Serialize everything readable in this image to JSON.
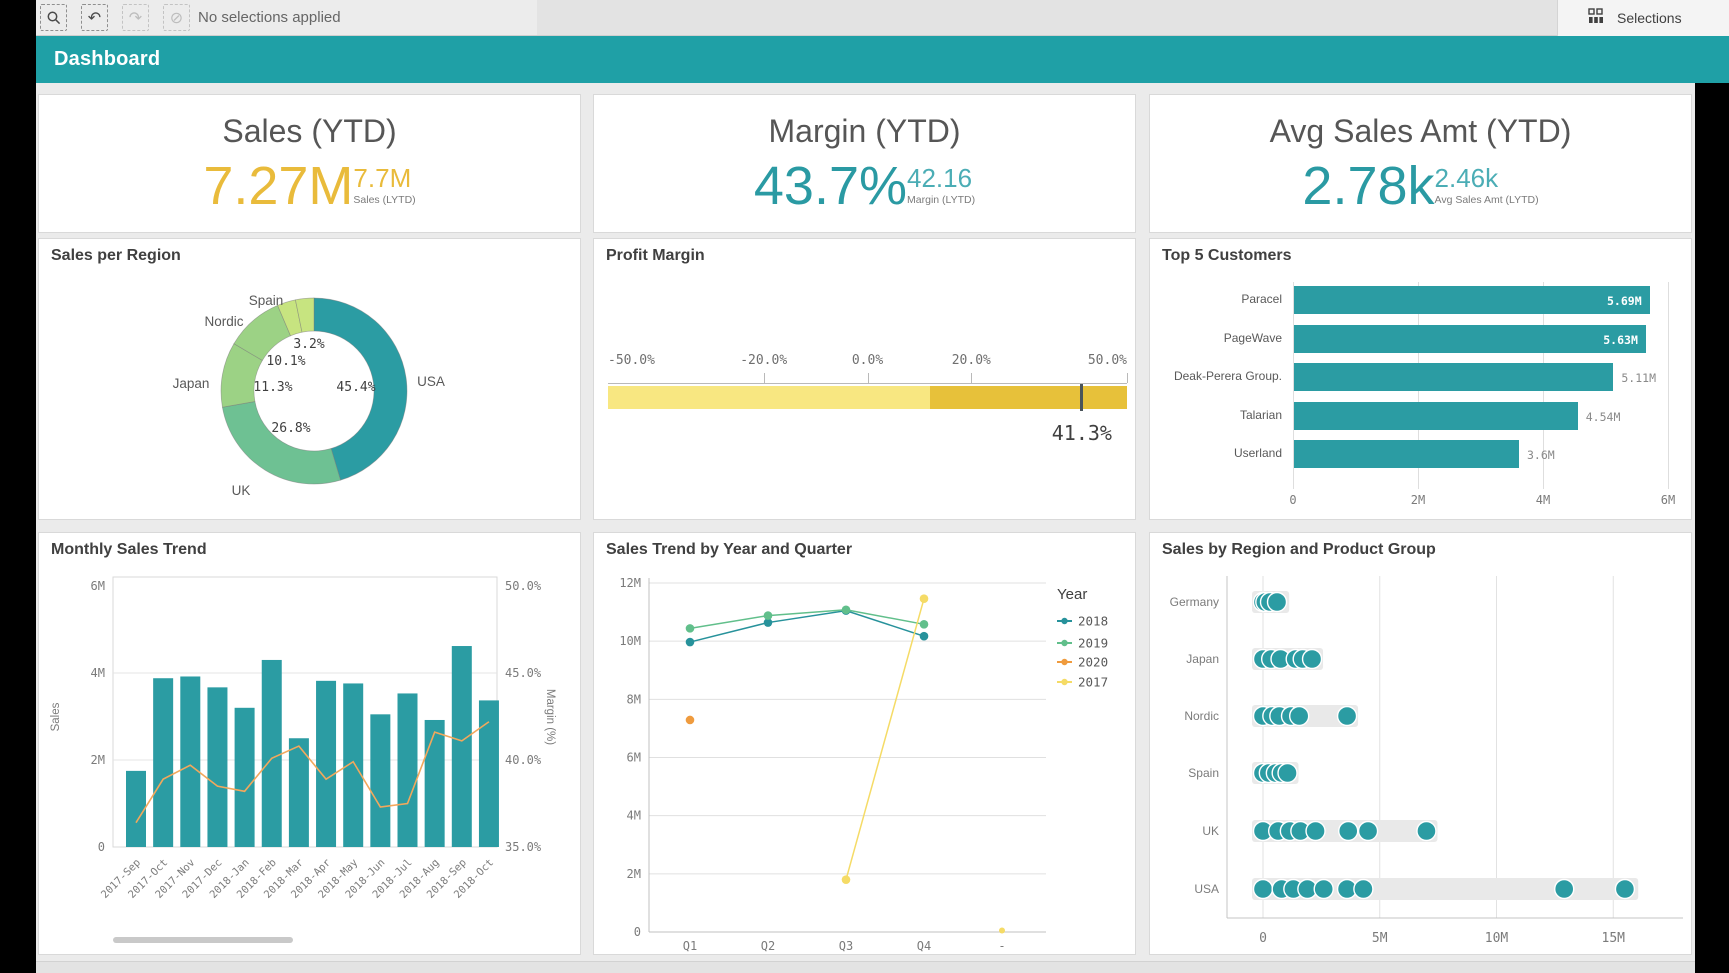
{
  "toolbar": {
    "message": "No selections applied",
    "selections_label": "Selections",
    "tools": [
      {
        "name": "smart-search",
        "enabled": true
      },
      {
        "name": "step-back",
        "enabled": true
      },
      {
        "name": "step-forward",
        "enabled": false
      },
      {
        "name": "clear-all-selections",
        "enabled": false
      }
    ]
  },
  "sheet": {
    "title": "Dashboard"
  },
  "colors": {
    "header_teal": "#1FA0A6",
    "chart_teal": "#2B9CA3",
    "kpi_yellow": "#E9BB3B",
    "kpi_teal": "#2A9AA3",
    "gauge_light": "#F8E781",
    "gauge_dark": "#E7C13A",
    "line_orange": "#F2A85C"
  },
  "kpis": [
    {
      "title": "Sales (YTD)",
      "value": "7.27M",
      "value_color": "#E9BB3B",
      "secondary": "7.7M",
      "secondary_color": "#E9BB3B",
      "secondary_label": "Sales (LYTD)"
    },
    {
      "title": "Margin (YTD)",
      "value": "43.7%",
      "value_color": "#2A9AA3",
      "secondary": "42.16",
      "secondary_color": "#4BADB5",
      "secondary_label": "Margin (LYTD)"
    },
    {
      "title": "Avg Sales Amt (YTD)",
      "value": "2.78k",
      "value_color": "#2A9AA3",
      "secondary": "2.46k",
      "secondary_color": "#4BADB5",
      "secondary_label": "Avg Sales Amt (LYTD)"
    }
  ],
  "chart_data": [
    {
      "id": "sales-per-region",
      "type": "pie",
      "title": "Sales per Region",
      "donut": true,
      "slices": [
        {
          "label": "USA",
          "pct": 45.4,
          "pct_label": "45.4%",
          "color": "#2B9CA3"
        },
        {
          "label": "UK",
          "pct": 26.8,
          "pct_label": "26.8%",
          "color": "#6EC193"
        },
        {
          "label": "Japan",
          "pct": 11.3,
          "pct_label": "11.3%",
          "color": "#9CD285"
        },
        {
          "label": "Nordic",
          "pct": 10.1,
          "pct_label": "10.1%",
          "color": "#9CD285"
        },
        {
          "label": "Spain",
          "pct": 3.2,
          "pct_label": "3.2%",
          "color": "#C7E480"
        },
        {
          "label": "",
          "pct": 3.2,
          "pct_label": "",
          "color": "#C7E480"
        }
      ]
    },
    {
      "id": "profit-margin",
      "type": "gauge",
      "title": "Profit Margin",
      "min": -50,
      "max": 50,
      "value": 41.3,
      "value_label": "41.3%",
      "segments": [
        {
          "from": -50,
          "to": 12,
          "color": "#F8E781"
        },
        {
          "from": 12,
          "to": 50,
          "color": "#E7C13A"
        }
      ],
      "ticks": [
        {
          "v": -50,
          "label": "-50.0%"
        },
        {
          "v": -20,
          "label": "-20.0%"
        },
        {
          "v": 0,
          "label": "0.0%"
        },
        {
          "v": 20,
          "label": "20.0%"
        },
        {
          "v": 50,
          "label": "50.0%"
        }
      ]
    },
    {
      "id": "top-5-customers",
      "type": "bar",
      "title": "Top 5 Customers",
      "orientation": "horizontal",
      "categories": [
        "Paracel",
        "PageWave",
        "Deak-Perera Group.",
        "Talarian",
        "Userland"
      ],
      "values": [
        5.69,
        5.63,
        5.11,
        4.54,
        3.6
      ],
      "value_labels": [
        "5.69M",
        "5.63M",
        "5.11M",
        "4.54M",
        "3.6M"
      ],
      "label_inside": [
        true,
        true,
        false,
        false,
        false
      ],
      "x_ticks": [
        {
          "v": 0,
          "label": "0"
        },
        {
          "v": 2,
          "label": "2M"
        },
        {
          "v": 4,
          "label": "4M"
        },
        {
          "v": 6,
          "label": "6M"
        }
      ],
      "xlim": [
        0,
        6.24
      ],
      "bar_color": "#2B9CA3"
    },
    {
      "id": "monthly-sales-trend",
      "type": "combo",
      "title": "Monthly Sales Trend",
      "categories": [
        "2017-Sep",
        "2017-Oct",
        "2017-Nov",
        "2017-Dec",
        "2018-Jan",
        "2018-Feb",
        "2018-Mar",
        "2018-Apr",
        "2018-May",
        "2018-Jun",
        "2018-Jul",
        "2018-Aug",
        "2018-Sep",
        "2018-Oct"
      ],
      "bars": {
        "name": "Sales",
        "color": "#2B9CA3",
        "values": [
          1.75,
          3.88,
          3.92,
          3.67,
          3.2,
          4.3,
          2.5,
          3.82,
          3.76,
          3.05,
          3.53,
          2.92,
          4.62,
          3.37
        ]
      },
      "line": {
        "name": "Margin (%)",
        "color": "#F2A85C",
        "values": [
          36.4,
          38.9,
          39.7,
          38.5,
          38.2,
          40.1,
          40.8,
          38.9,
          39.9,
          37.3,
          37.5,
          41.6,
          41.1,
          42.2
        ]
      },
      "left_axis": {
        "title": "Sales",
        "lim": [
          0,
          6
        ],
        "ticks": [
          {
            "v": 6,
            "label": "6M"
          },
          {
            "v": 4,
            "label": "4M"
          },
          {
            "v": 2,
            "label": "2M"
          },
          {
            "v": 0,
            "label": "0"
          }
        ]
      },
      "right_axis": {
        "title": "Margin (%)",
        "lim": [
          35,
          50
        ],
        "ticks": [
          {
            "v": 50,
            "label": "50.0%"
          },
          {
            "v": 45,
            "label": "45.0%"
          },
          {
            "v": 40,
            "label": "40.0%"
          },
          {
            "v": 35,
            "label": "35.0%"
          }
        ]
      }
    },
    {
      "id": "sales-trend-by-year-quarter",
      "type": "line",
      "title": "Sales Trend by Year and Quarter",
      "x_categories": [
        "Q1",
        "Q2",
        "Q3",
        "Q4",
        "-"
      ],
      "ylim": [
        0,
        12
      ],
      "y_ticks": [
        {
          "v": 12,
          "label": "12M"
        },
        {
          "v": 10,
          "label": "10M"
        },
        {
          "v": 8,
          "label": "8M"
        },
        {
          "v": 6,
          "label": "6M"
        },
        {
          "v": 4,
          "label": "4M"
        },
        {
          "v": 2,
          "label": "2M"
        },
        {
          "v": 0,
          "label": "0"
        }
      ],
      "legend_title": "Year",
      "series": [
        {
          "name": "2018",
          "color": "#27929B",
          "points": [
            [
              "Q1",
              9.97
            ],
            [
              "Q2",
              10.64
            ],
            [
              "Q3",
              11.05
            ],
            [
              "Q4",
              10.17
            ]
          ]
        },
        {
          "name": "2019",
          "color": "#61BF8B",
          "points": [
            [
              "Q1",
              10.44
            ],
            [
              "Q2",
              10.88
            ],
            [
              "Q3",
              11.08
            ],
            [
              "Q4",
              10.58
            ]
          ]
        },
        {
          "name": "2020",
          "color": "#EF9B3E",
          "points": [
            [
              "Q1",
              7.29
            ]
          ]
        },
        {
          "name": "2017",
          "color": "#F5DB66",
          "points": [
            [
              "Q3",
              1.8
            ],
            [
              "Q4",
              11.46
            ]
          ],
          "isolated_points": [
            [
              "-",
              0.05
            ]
          ]
        }
      ]
    },
    {
      "id": "sales-by-region-product-group",
      "type": "scatter",
      "title": "Sales by Region and Product Group",
      "categories": [
        "Germany",
        "Japan",
        "Nordic",
        "Spain",
        "UK",
        "USA"
      ],
      "x_ticks": [
        {
          "v": 0,
          "label": "0"
        },
        {
          "v": 5,
          "label": "5M"
        },
        {
          "v": 10,
          "label": "10M"
        },
        {
          "v": 15,
          "label": "15M"
        }
      ],
      "point_color": "#2B9CA3",
      "range_color": "#E9E9E9",
      "rows": [
        {
          "label": "Germany",
          "range": [
            0,
            0.65
          ],
          "points": [
            0,
            0.1,
            0.3,
            0.6
          ]
        },
        {
          "label": "Japan",
          "range": [
            0,
            2.1
          ],
          "points": [
            0,
            0.35,
            0.75,
            1.4,
            1.7,
            2.1
          ]
        },
        {
          "label": "Nordic",
          "range": [
            0,
            3.6
          ],
          "points": [
            0,
            0.4,
            0.7,
            1.2,
            1.55,
            3.6
          ]
        },
        {
          "label": "Spain",
          "range": [
            0,
            1.05
          ],
          "points": [
            0,
            0.25,
            0.55,
            0.8,
            1.05
          ]
        },
        {
          "label": "UK",
          "range": [
            0,
            7.0
          ],
          "points": [
            0,
            0.65,
            1.15,
            1.6,
            2.25,
            3.65,
            4.5,
            7.0
          ]
        },
        {
          "label": "USA",
          "range": [
            0,
            15.6
          ],
          "points": [
            0,
            0.8,
            1.3,
            1.9,
            2.6,
            3.6,
            4.3,
            12.9,
            15.5
          ]
        }
      ]
    }
  ]
}
